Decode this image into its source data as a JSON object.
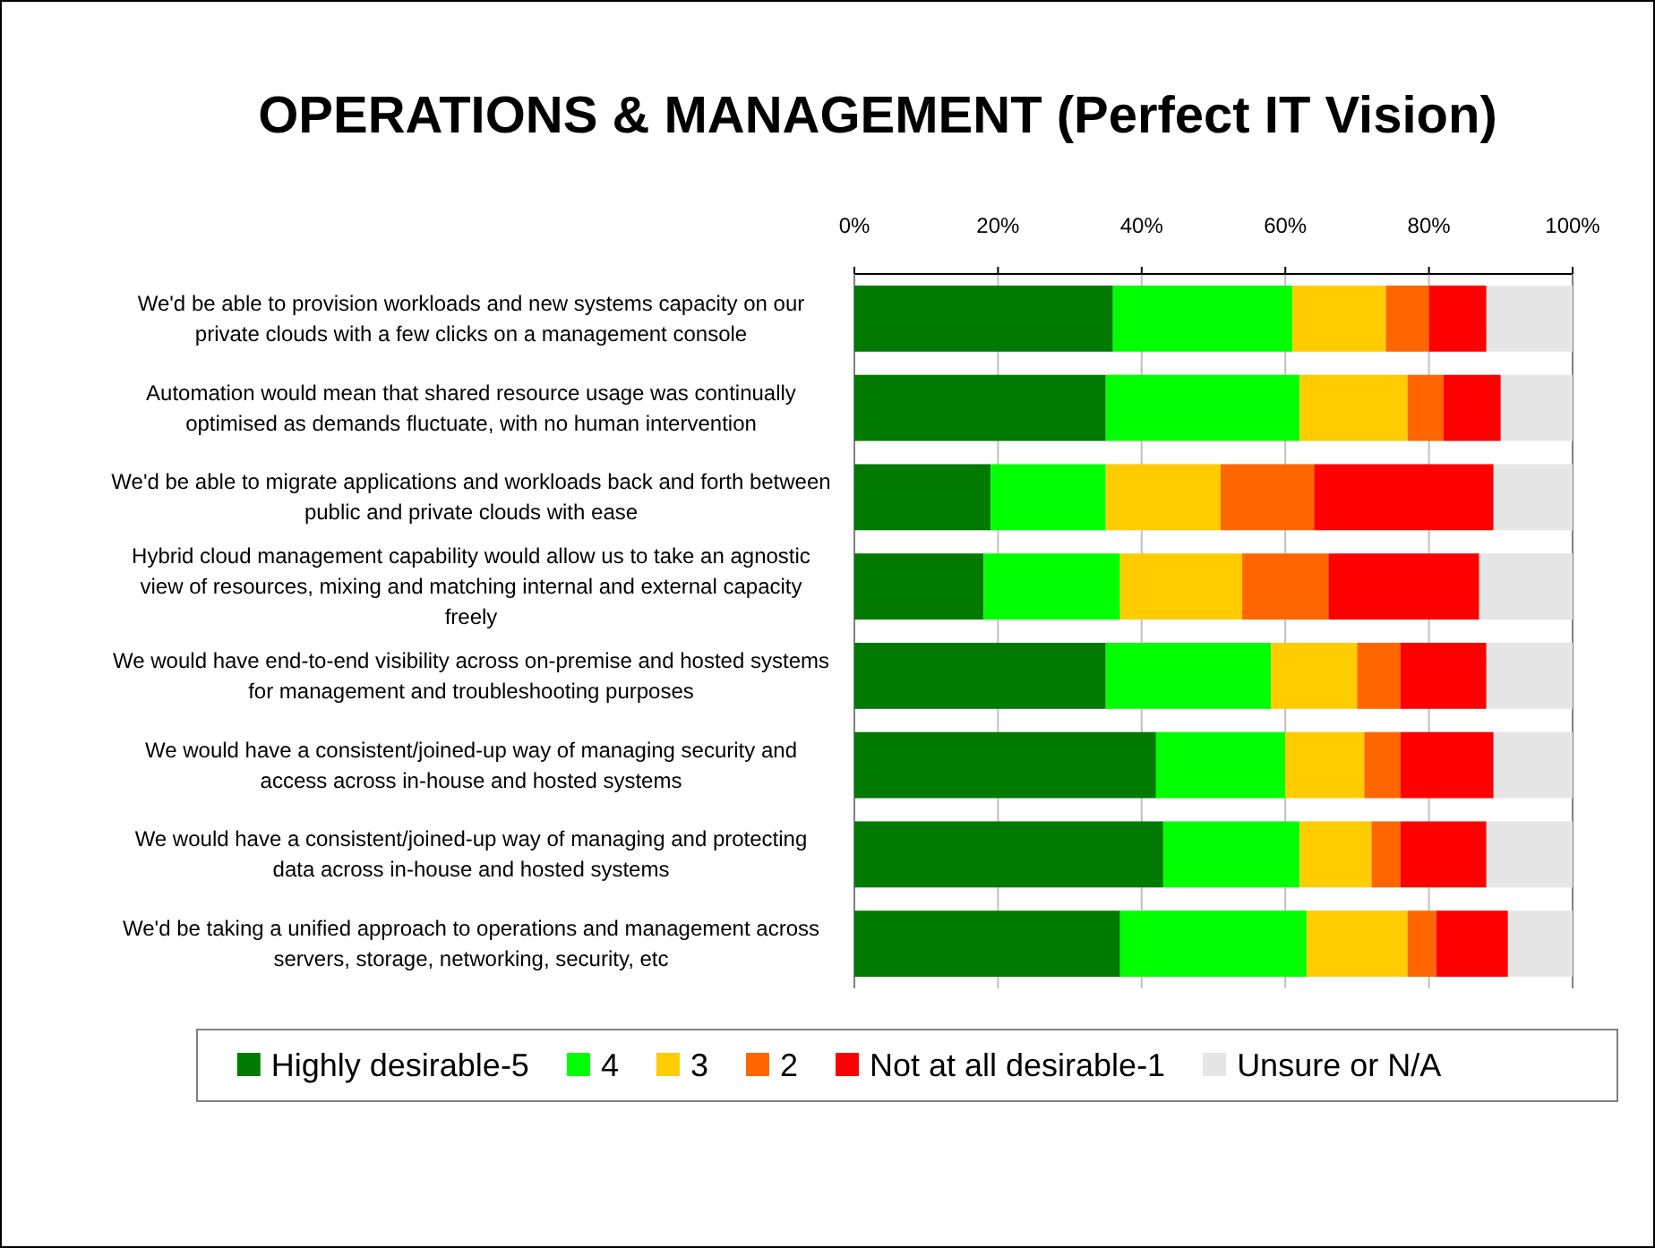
{
  "chart_data": {
    "type": "bar",
    "title": "OPERATIONS & MANAGEMENT (Perfect IT Vision)",
    "orientation": "horizontal",
    "stacked": true,
    "categories": [
      "We'd be able to provision workloads and new systems capacity on our private clouds with a few clicks on a management console",
      "Automation would mean that shared resource usage was continually optimised as demands fluctuate, with no human intervention",
      "We'd be able to migrate applications and workloads back and forth between public and private clouds with ease",
      "Hybrid cloud management capability would allow us to take an agnostic view of resources, mixing and matching internal and external capacity freely",
      "We would have end-to-end visibility across on-premise and hosted systems for management and troubleshooting purposes",
      "We would have a consistent/joined-up way of managing security and access across in-house and hosted systems",
      "We would have a consistent/joined-up way of managing and protecting data across in-house and hosted systems",
      "We'd be taking a unified approach to operations and management across servers, storage, networking, security, etc"
    ],
    "series": [
      {
        "name": "Highly desirable-5",
        "color": "#007a00",
        "values": [
          36,
          35,
          19,
          18,
          35,
          42,
          43,
          37
        ]
      },
      {
        "name": "4",
        "color": "#00ff00",
        "values": [
          25,
          27,
          16,
          19,
          23,
          18,
          19,
          26
        ]
      },
      {
        "name": "3",
        "color": "#ffcc00",
        "values": [
          13,
          15,
          16,
          17,
          12,
          11,
          10,
          14
        ]
      },
      {
        "name": "2",
        "color": "#ff6600",
        "values": [
          6,
          5,
          13,
          12,
          6,
          5,
          4,
          4
        ]
      },
      {
        "name": "Not at all desirable-1",
        "color": "#ff0000",
        "values": [
          8,
          8,
          25,
          21,
          12,
          13,
          12,
          10
        ]
      },
      {
        "name": "Unsure or N/A",
        "color": "#e6e6e6",
        "values": [
          12,
          10,
          11,
          13,
          12,
          11,
          12,
          9
        ]
      }
    ],
    "xlim": [
      0,
      100
    ],
    "xticks": [
      {
        "value": 0,
        "label": "0%"
      },
      {
        "value": 20,
        "label": "20%"
      },
      {
        "value": 40,
        "label": "40%"
      },
      {
        "value": 60,
        "label": "60%"
      },
      {
        "value": 80,
        "label": "80%"
      },
      {
        "value": 100,
        "label": "100%"
      }
    ],
    "grid": "x",
    "legend": "bottom"
  }
}
